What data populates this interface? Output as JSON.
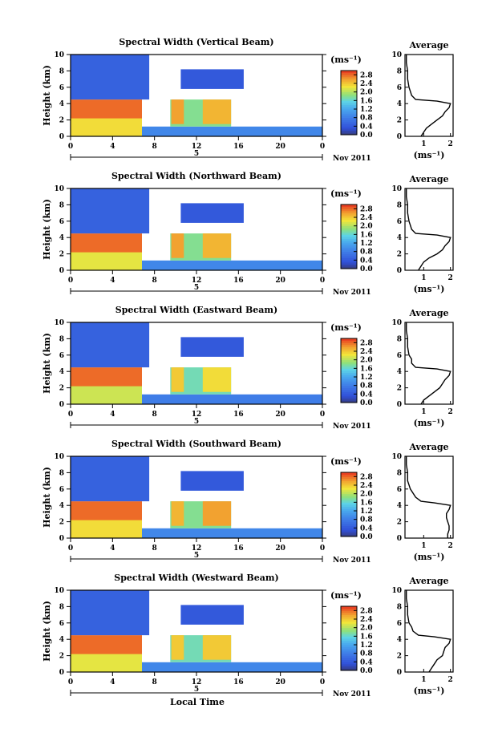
{
  "figure": {
    "xlabel": "Local Time",
    "colorbar_unit": "(ms⁻¹)",
    "date_prefix": "5",
    "date_suffix": "Nov 2011"
  },
  "colors": {
    "dark_navy": "#353a78",
    "blue": "#3050d8",
    "mid_blue": "#3e78e6",
    "light_blue": "#48a6ee",
    "cyan": "#5ed4e6",
    "green": "#8ee07c",
    "yellow": "#f2e63a",
    "orange": "#f2a030",
    "red": "#e83420"
  },
  "chart_data": [
    {
      "type": "heatmap",
      "title": "Spectral Width (Vertical Beam)",
      "xlabel": "Local Time",
      "ylabel": "Height (km)",
      "x_ticks": [
        "0",
        "4",
        "8",
        "12",
        "16",
        "20",
        "0"
      ],
      "y_ticks": [
        "0",
        "2",
        "4",
        "6",
        "8",
        "10"
      ],
      "xlim": [
        0,
        24
      ],
      "ylim": [
        0,
        10
      ],
      "colorbar": {
        "label": "(ms⁻¹)",
        "ticks": [
          "0.0",
          "0.4",
          "0.8",
          "1.2",
          "1.6",
          "2.0",
          "2.4",
          "2.8"
        ],
        "range": [
          0,
          3.0
        ]
      },
      "regions": [
        {
          "x": [
            0,
            24
          ],
          "y": [
            0,
            1.2
          ],
          "value": 0.9
        },
        {
          "x": [
            0,
            6.8
          ],
          "y": [
            0,
            4.5
          ],
          "value": 2.8
        },
        {
          "x": [
            0,
            6.8
          ],
          "y": [
            0,
            2.2
          ],
          "value": 2.3
        },
        {
          "x": [
            9.5,
            15.3
          ],
          "y": [
            1.2,
            4.5
          ],
          "value": 1.8
        },
        {
          "x": [
            9.6,
            10.8
          ],
          "y": [
            1.5,
            4.5
          ],
          "value": 2.6
        },
        {
          "x": [
            12.6,
            15.3
          ],
          "y": [
            1.5,
            4.5
          ],
          "value": 2.5
        },
        {
          "x": [
            0,
            7.5
          ],
          "y": [
            4.5,
            10
          ],
          "value": 0.5
        },
        {
          "x": [
            10.5,
            16.5
          ],
          "y": [
            5.8,
            8.2
          ],
          "value": 0.4
        }
      ],
      "profile": {
        "title": "Average",
        "xlabel": "(ms⁻¹)",
        "x_ticks": [
          "1",
          "2"
        ],
        "y_ticks": [
          "0",
          "2",
          "4",
          "6",
          "8",
          "10"
        ],
        "xlim": [
          0.3,
          2.1
        ],
        "ylim": [
          0,
          10
        ],
        "height": [
          0,
          0.5,
          1.0,
          1.5,
          2.0,
          2.5,
          3.0,
          3.5,
          4.0,
          4.3,
          4.5,
          5.0,
          5.5,
          6.0,
          7.0,
          8.0,
          9.0,
          10.0
        ],
        "width": [
          0.9,
          1.0,
          1.1,
          1.3,
          1.5,
          1.7,
          1.8,
          1.95,
          2.0,
          1.5,
          0.7,
          0.55,
          0.5,
          0.45,
          0.4,
          0.4,
          0.35,
          0.35
        ]
      }
    },
    {
      "type": "heatmap",
      "title": "Spectral Width (Northward Beam)",
      "xlabel": "Local Time",
      "ylabel": "Height (km)",
      "x_ticks": [
        "0",
        "4",
        "8",
        "12",
        "16",
        "20",
        "0"
      ],
      "y_ticks": [
        "0",
        "2",
        "4",
        "6",
        "8",
        "10"
      ],
      "xlim": [
        0,
        24
      ],
      "ylim": [
        0,
        10
      ],
      "colorbar": {
        "label": "(ms⁻¹)",
        "ticks": [
          "0.0",
          "0.4",
          "0.8",
          "1.2",
          "1.6",
          "2.0",
          "2.4",
          "2.8"
        ],
        "range": [
          0,
          3.0
        ]
      },
      "regions": [
        {
          "x": [
            0,
            24
          ],
          "y": [
            0,
            1.2
          ],
          "value": 0.9
        },
        {
          "x": [
            0,
            6.8
          ],
          "y": [
            0,
            4.5
          ],
          "value": 2.8
        },
        {
          "x": [
            0,
            6.8
          ],
          "y": [
            0,
            2.2
          ],
          "value": 2.2
        },
        {
          "x": [
            9.5,
            15.3
          ],
          "y": [
            1.2,
            4.5
          ],
          "value": 1.8
        },
        {
          "x": [
            9.6,
            10.8
          ],
          "y": [
            1.5,
            4.5
          ],
          "value": 2.6
        },
        {
          "x": [
            12.6,
            15.3
          ],
          "y": [
            1.5,
            4.5
          ],
          "value": 2.5
        },
        {
          "x": [
            0,
            7.5
          ],
          "y": [
            4.5,
            10
          ],
          "value": 0.5
        },
        {
          "x": [
            10.5,
            16.5
          ],
          "y": [
            5.8,
            8.2
          ],
          "value": 0.4
        }
      ],
      "profile": {
        "title": "Average",
        "xlabel": "(ms⁻¹)",
        "x_ticks": [
          "1",
          "2"
        ],
        "y_ticks": [
          "0",
          "2",
          "4",
          "6",
          "8",
          "10"
        ],
        "xlim": [
          0.3,
          2.1
        ],
        "ylim": [
          0,
          10
        ],
        "height": [
          0,
          0.5,
          1.0,
          1.5,
          2.0,
          2.5,
          3.0,
          3.5,
          4.0,
          4.3,
          4.5,
          5.0,
          5.5,
          6.0,
          7.0,
          8.0,
          9.0,
          10.0
        ],
        "width": [
          0.8,
          0.9,
          1.0,
          1.2,
          1.5,
          1.7,
          1.8,
          1.95,
          2.0,
          1.5,
          0.7,
          0.55,
          0.5,
          0.45,
          0.4,
          0.4,
          0.35,
          0.35
        ]
      }
    },
    {
      "type": "heatmap",
      "title": "Spectral Width (Eastward Beam)",
      "xlabel": "Local Time",
      "ylabel": "Height (km)",
      "x_ticks": [
        "0",
        "4",
        "8",
        "12",
        "16",
        "20",
        "0"
      ],
      "y_ticks": [
        "0",
        "2",
        "4",
        "6",
        "8",
        "10"
      ],
      "xlim": [
        0,
        24
      ],
      "ylim": [
        0,
        10
      ],
      "colorbar": {
        "label": "(ms⁻¹)",
        "ticks": [
          "0.0",
          "0.4",
          "0.8",
          "1.2",
          "1.6",
          "2.0",
          "2.4",
          "2.8"
        ],
        "range": [
          0,
          3.0
        ]
      },
      "regions": [
        {
          "x": [
            0,
            24
          ],
          "y": [
            0,
            1.2
          ],
          "value": 0.8
        },
        {
          "x": [
            0,
            6.8
          ],
          "y": [
            0,
            4.5
          ],
          "value": 2.8
        },
        {
          "x": [
            0,
            6.8
          ],
          "y": [
            0,
            2.2
          ],
          "value": 2.1
        },
        {
          "x": [
            9.5,
            15.3
          ],
          "y": [
            1.2,
            4.5
          ],
          "value": 1.7
        },
        {
          "x": [
            9.6,
            10.8
          ],
          "y": [
            1.5,
            4.5
          ],
          "value": 2.4
        },
        {
          "x": [
            12.6,
            15.3
          ],
          "y": [
            1.5,
            4.5
          ],
          "value": 2.3
        },
        {
          "x": [
            0,
            7.5
          ],
          "y": [
            4.5,
            10
          ],
          "value": 0.5
        },
        {
          "x": [
            10.5,
            16.5
          ],
          "y": [
            5.8,
            8.2
          ],
          "value": 0.4
        }
      ],
      "profile": {
        "title": "Average",
        "xlabel": "(ms⁻¹)",
        "x_ticks": [
          "1",
          "2"
        ],
        "y_ticks": [
          "0",
          "2",
          "4",
          "6",
          "8",
          "10"
        ],
        "xlim": [
          0.3,
          2.1
        ],
        "ylim": [
          0,
          10
        ],
        "height": [
          0,
          0.5,
          1.0,
          1.5,
          2.0,
          2.5,
          3.0,
          3.5,
          4.0,
          4.3,
          4.5,
          5.0,
          5.5,
          6.0,
          7.0,
          8.0,
          9.0,
          10.0
        ],
        "width": [
          0.9,
          1.0,
          1.2,
          1.4,
          1.6,
          1.7,
          1.8,
          1.95,
          2.0,
          1.5,
          0.7,
          0.55,
          0.55,
          0.45,
          0.4,
          0.4,
          0.35,
          0.35
        ]
      }
    },
    {
      "type": "heatmap",
      "title": "Spectral Width (Southward Beam)",
      "xlabel": "Local Time",
      "ylabel": "Height (km)",
      "x_ticks": [
        "0",
        "4",
        "8",
        "12",
        "16",
        "20",
        "0"
      ],
      "y_ticks": [
        "0",
        "2",
        "4",
        "6",
        "8",
        "10"
      ],
      "xlim": [
        0,
        24
      ],
      "ylim": [
        0,
        10
      ],
      "colorbar": {
        "label": "(ms⁻¹)",
        "ticks": [
          "0.0",
          "0.4",
          "0.8",
          "1.2",
          "1.6",
          "2.0",
          "2.4",
          "2.8"
        ],
        "range": [
          0,
          3.0
        ]
      },
      "regions": [
        {
          "x": [
            0,
            24
          ],
          "y": [
            0,
            1.2
          ],
          "value": 0.9
        },
        {
          "x": [
            0,
            6.8
          ],
          "y": [
            0,
            4.5
          ],
          "value": 2.8
        },
        {
          "x": [
            0,
            6.8
          ],
          "y": [
            0,
            2.2
          ],
          "value": 2.3
        },
        {
          "x": [
            9.5,
            15.3
          ],
          "y": [
            1.2,
            4.5
          ],
          "value": 1.8
        },
        {
          "x": [
            9.6,
            10.8
          ],
          "y": [
            1.5,
            4.5
          ],
          "value": 2.5
        },
        {
          "x": [
            12.6,
            15.3
          ],
          "y": [
            1.5,
            4.5
          ],
          "value": 2.6
        },
        {
          "x": [
            0,
            7.5
          ],
          "y": [
            4.5,
            10
          ],
          "value": 0.5
        },
        {
          "x": [
            10.5,
            16.5
          ],
          "y": [
            5.8,
            8.2
          ],
          "value": 0.4
        }
      ],
      "profile": {
        "title": "Average",
        "xlabel": "(ms⁻¹)",
        "x_ticks": [
          "1",
          "2"
        ],
        "y_ticks": [
          "0",
          "2",
          "4",
          "6",
          "8",
          "10"
        ],
        "xlim": [
          0.3,
          2.1
        ],
        "ylim": [
          0,
          10
        ],
        "height": [
          0,
          0.5,
          1.0,
          1.5,
          2.0,
          2.5,
          3.0,
          3.5,
          4.0,
          4.3,
          4.5,
          5.0,
          5.5,
          6.0,
          7.0,
          8.0,
          9.0,
          10.0
        ],
        "width": [
          1.9,
          1.9,
          1.95,
          1.95,
          1.9,
          1.85,
          1.85,
          1.95,
          2.0,
          1.4,
          0.9,
          0.7,
          0.6,
          0.5,
          0.4,
          0.4,
          0.35,
          0.35
        ]
      }
    },
    {
      "type": "heatmap",
      "title": "Spectral Width (Westward Beam)",
      "xlabel": "Local Time",
      "ylabel": "Height (km)",
      "x_ticks": [
        "0",
        "4",
        "8",
        "12",
        "16",
        "20",
        "0"
      ],
      "y_ticks": [
        "0",
        "2",
        "4",
        "6",
        "8",
        "10"
      ],
      "xlim": [
        0,
        24
      ],
      "ylim": [
        0,
        10
      ],
      "colorbar": {
        "label": "(ms⁻¹)",
        "ticks": [
          "0.0",
          "0.4",
          "0.8",
          "1.2",
          "1.6",
          "2.0",
          "2.4",
          "2.8"
        ],
        "range": [
          0,
          3.0
        ]
      },
      "regions": [
        {
          "x": [
            0,
            24
          ],
          "y": [
            0,
            1.2
          ],
          "value": 0.9
        },
        {
          "x": [
            0,
            6.8
          ],
          "y": [
            0,
            4.5
          ],
          "value": 2.8
        },
        {
          "x": [
            0,
            6.8
          ],
          "y": [
            0,
            2.2
          ],
          "value": 2.2
        },
        {
          "x": [
            9.5,
            15.3
          ],
          "y": [
            1.2,
            4.5
          ],
          "value": 1.7
        },
        {
          "x": [
            9.6,
            10.8
          ],
          "y": [
            1.5,
            4.5
          ],
          "value": 2.4
        },
        {
          "x": [
            12.6,
            15.3
          ],
          "y": [
            1.5,
            4.5
          ],
          "value": 2.4
        },
        {
          "x": [
            0,
            7.5
          ],
          "y": [
            4.5,
            10
          ],
          "value": 0.5
        },
        {
          "x": [
            10.5,
            16.5
          ],
          "y": [
            5.8,
            8.2
          ],
          "value": 0.4
        }
      ],
      "profile": {
        "title": "Average",
        "xlabel": "(ms⁻¹)",
        "x_ticks": [
          "1",
          "2"
        ],
        "y_ticks": [
          "0",
          "2",
          "4",
          "6",
          "8",
          "10"
        ],
        "xlim": [
          0.3,
          2.1
        ],
        "ylim": [
          0,
          10
        ],
        "height": [
          0,
          0.5,
          1.0,
          1.5,
          2.0,
          2.5,
          3.0,
          3.5,
          4.0,
          4.3,
          4.5,
          5.0,
          5.5,
          6.0,
          7.0,
          8.0,
          9.0,
          10.0
        ],
        "width": [
          1.2,
          1.3,
          1.4,
          1.5,
          1.7,
          1.75,
          1.8,
          1.95,
          2.0,
          1.4,
          0.8,
          0.6,
          0.55,
          0.45,
          0.4,
          0.4,
          0.35,
          0.35
        ]
      }
    }
  ]
}
